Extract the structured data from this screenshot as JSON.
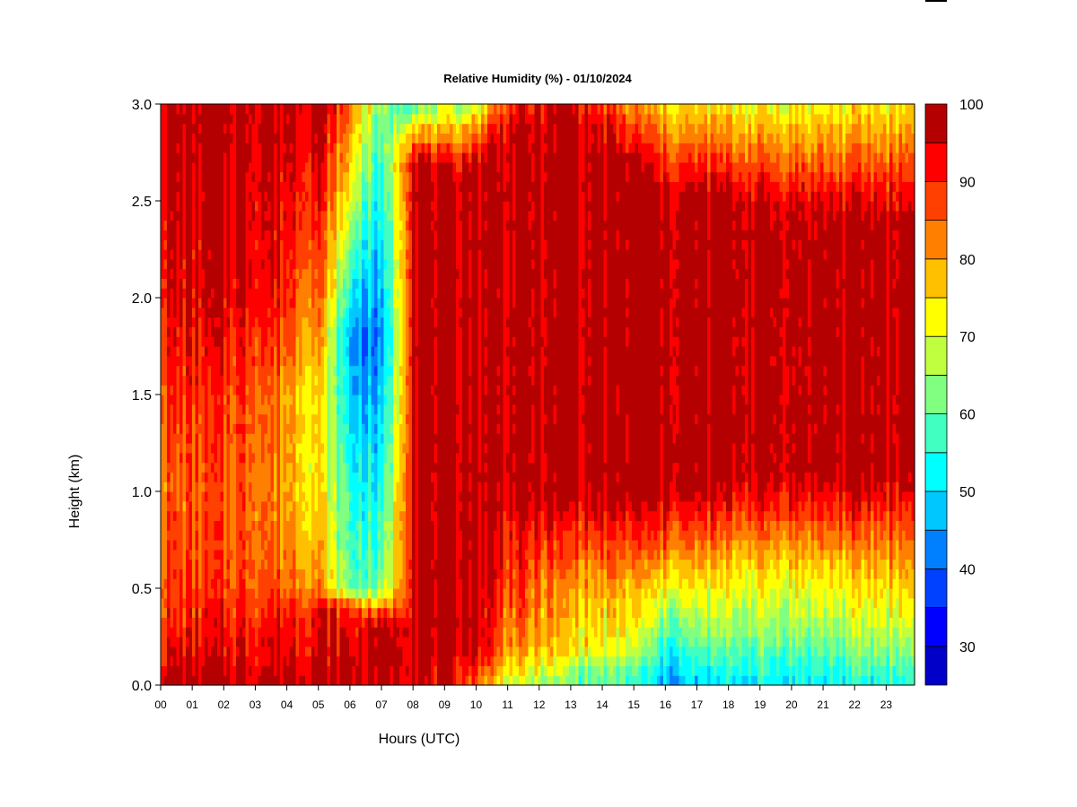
{
  "chart_data": {
    "type": "heatmap",
    "title": "Relative Humidity (%) - 01/10/2024",
    "xlabel": "Hours (UTC)",
    "ylabel": "Height (km)",
    "xlim": [
      0,
      23.9
    ],
    "ylim": [
      0.0,
      3.0
    ],
    "x_ticks": [
      "00",
      "01",
      "02",
      "03",
      "04",
      "05",
      "06",
      "07",
      "08",
      "09",
      "10",
      "11",
      "12",
      "13",
      "14",
      "15",
      "16",
      "17",
      "18",
      "19",
      "20",
      "21",
      "22",
      "23"
    ],
    "y_ticks": [
      "0.0",
      "0.5",
      "1.0",
      "1.5",
      "2.0",
      "2.5",
      "3.0"
    ],
    "colorbar": {
      "label_values": [
        "30",
        "40",
        "50",
        "60",
        "70",
        "80",
        "90",
        "100"
      ],
      "levels": [
        25,
        30,
        35,
        40,
        45,
        50,
        55,
        60,
        65,
        70,
        75,
        80,
        85,
        90,
        95,
        100
      ],
      "colors": [
        "#00007f",
        "#0000c8",
        "#0000ff",
        "#0040ff",
        "#0080ff",
        "#00c8ff",
        "#00ffff",
        "#40ffc0",
        "#80ff80",
        "#c0ff40",
        "#ffff00",
        "#ffc000",
        "#ff8000",
        "#ff4000",
        "#ff0000",
        "#b40000",
        "#7f0000"
      ]
    },
    "rh_field_by_hour": [
      {
        "hour": 0,
        "profile": [
          [
            0.0,
            98
          ],
          [
            0.3,
            90
          ],
          [
            0.5,
            88
          ],
          [
            1.0,
            85
          ],
          [
            1.8,
            92
          ],
          [
            2.3,
            95
          ],
          [
            3.0,
            98
          ]
        ]
      },
      {
        "hour": 3,
        "profile": [
          [
            0.0,
            98
          ],
          [
            0.3,
            92
          ],
          [
            0.5,
            88
          ],
          [
            1.0,
            86
          ],
          [
            1.5,
            88
          ],
          [
            2.0,
            95
          ],
          [
            3.0,
            98
          ]
        ]
      },
      {
        "hour": 5,
        "profile": [
          [
            0.0,
            98
          ],
          [
            0.4,
            92
          ],
          [
            0.5,
            82
          ],
          [
            1.0,
            75
          ],
          [
            1.5,
            75
          ],
          [
            2.0,
            85
          ],
          [
            2.5,
            92
          ],
          [
            3.0,
            98
          ]
        ]
      },
      {
        "hour": 6,
        "profile": [
          [
            0.0,
            98
          ],
          [
            0.4,
            90
          ],
          [
            0.5,
            60
          ],
          [
            1.0,
            55
          ],
          [
            1.8,
            45
          ],
          [
            2.5,
            70
          ],
          [
            3.0,
            85
          ]
        ]
      },
      {
        "hour": 7,
        "profile": [
          [
            0.0,
            98
          ],
          [
            0.3,
            98
          ],
          [
            0.5,
            60
          ],
          [
            1.8,
            40
          ],
          [
            2.5,
            50
          ],
          [
            3.0,
            60
          ]
        ]
      },
      {
        "hour": 8,
        "profile": [
          [
            0.0,
            98
          ],
          [
            1.0,
            98
          ],
          [
            2.7,
            98
          ],
          [
            2.9,
            75
          ],
          [
            3.0,
            60
          ]
        ]
      },
      {
        "hour": 9,
        "profile": [
          [
            0.0,
            92
          ],
          [
            0.2,
            98
          ],
          [
            2.6,
            98
          ],
          [
            2.8,
            80
          ],
          [
            3.0,
            65
          ]
        ]
      },
      {
        "hour": 10,
        "profile": [
          [
            0.0,
            85
          ],
          [
            0.2,
            98
          ],
          [
            2.7,
            98
          ],
          [
            3.0,
            70
          ]
        ]
      },
      {
        "hour": 11,
        "profile": [
          [
            0.0,
            70
          ],
          [
            0.2,
            82
          ],
          [
            0.5,
            88
          ],
          [
            0.8,
            92
          ],
          [
            1.0,
            98
          ],
          [
            2.8,
            98
          ],
          [
            3.0,
            90
          ]
        ]
      },
      {
        "hour": 13,
        "profile": [
          [
            0.0,
            60
          ],
          [
            0.2,
            75
          ],
          [
            0.5,
            80
          ],
          [
            0.8,
            90
          ],
          [
            1.0,
            98
          ],
          [
            2.9,
            98
          ],
          [
            3.0,
            95
          ]
        ]
      },
      {
        "hour": 15,
        "profile": [
          [
            0.0,
            55
          ],
          [
            0.2,
            68
          ],
          [
            0.5,
            78
          ],
          [
            0.8,
            90
          ],
          [
            1.0,
            98
          ],
          [
            2.7,
            98
          ],
          [
            3.0,
            80
          ]
        ]
      },
      {
        "hour": 16,
        "profile": [
          [
            0.0,
            45
          ],
          [
            0.2,
            55
          ],
          [
            0.5,
            72
          ],
          [
            0.8,
            88
          ],
          [
            1.0,
            98
          ],
          [
            2.5,
            98
          ],
          [
            3.0,
            75
          ]
        ]
      },
      {
        "hour": 18,
        "profile": [
          [
            0.0,
            50
          ],
          [
            0.3,
            65
          ],
          [
            0.6,
            75
          ],
          [
            0.9,
            90
          ],
          [
            1.1,
            98
          ],
          [
            2.5,
            98
          ],
          [
            3.0,
            72
          ]
        ]
      },
      {
        "hour": 21,
        "profile": [
          [
            0.0,
            52
          ],
          [
            0.3,
            65
          ],
          [
            0.6,
            75
          ],
          [
            0.9,
            90
          ],
          [
            1.1,
            98
          ],
          [
            2.4,
            98
          ],
          [
            3.0,
            72
          ]
        ]
      },
      {
        "hour": 23.9,
        "profile": [
          [
            0.0,
            55
          ],
          [
            0.3,
            70
          ],
          [
            0.6,
            80
          ],
          [
            0.9,
            90
          ],
          [
            1.1,
            98
          ],
          [
            2.4,
            98
          ],
          [
            3.0,
            75
          ]
        ]
      }
    ]
  }
}
